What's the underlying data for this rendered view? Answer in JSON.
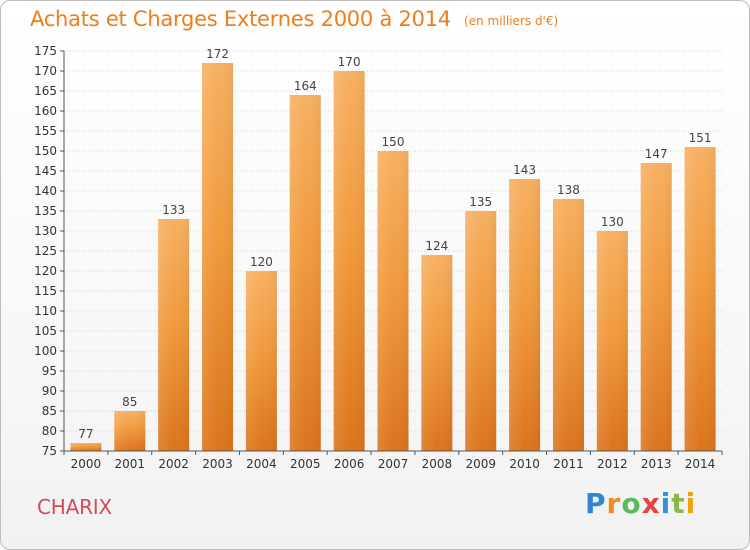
{
  "title": "Achats et Charges Externes 2000 à 2014",
  "subtitle": "(en milliers d'€)",
  "commune": "CHARIX",
  "brand": {
    "text": "Proxiti",
    "colors": [
      "#2f86d7",
      "#f08c1f",
      "#5cb85c",
      "#e64343",
      "#3b8de0",
      "#87b84a",
      "#f0a20c"
    ]
  },
  "chart_data": {
    "type": "bar",
    "categories": [
      "2000",
      "2001",
      "2002",
      "2003",
      "2004",
      "2005",
      "2006",
      "2007",
      "2008",
      "2009",
      "2010",
      "2011",
      "2012",
      "2013",
      "2014"
    ],
    "values": [
      77,
      85,
      133,
      172,
      120,
      164,
      170,
      150,
      124,
      135,
      143,
      138,
      130,
      147,
      151
    ],
    "ylim": [
      75,
      175
    ],
    "yticks": [
      75,
      80,
      85,
      90,
      95,
      100,
      105,
      110,
      115,
      120,
      125,
      130,
      135,
      140,
      145,
      150,
      155,
      160,
      165,
      170,
      175
    ],
    "grid": true,
    "bar_color": "#f19a3d",
    "bar_dark": "#db741c",
    "bar_light": "#f7b061",
    "label_color": "#444444",
    "axis_color": "#555555",
    "grid_color": "#d3d3d3"
  }
}
